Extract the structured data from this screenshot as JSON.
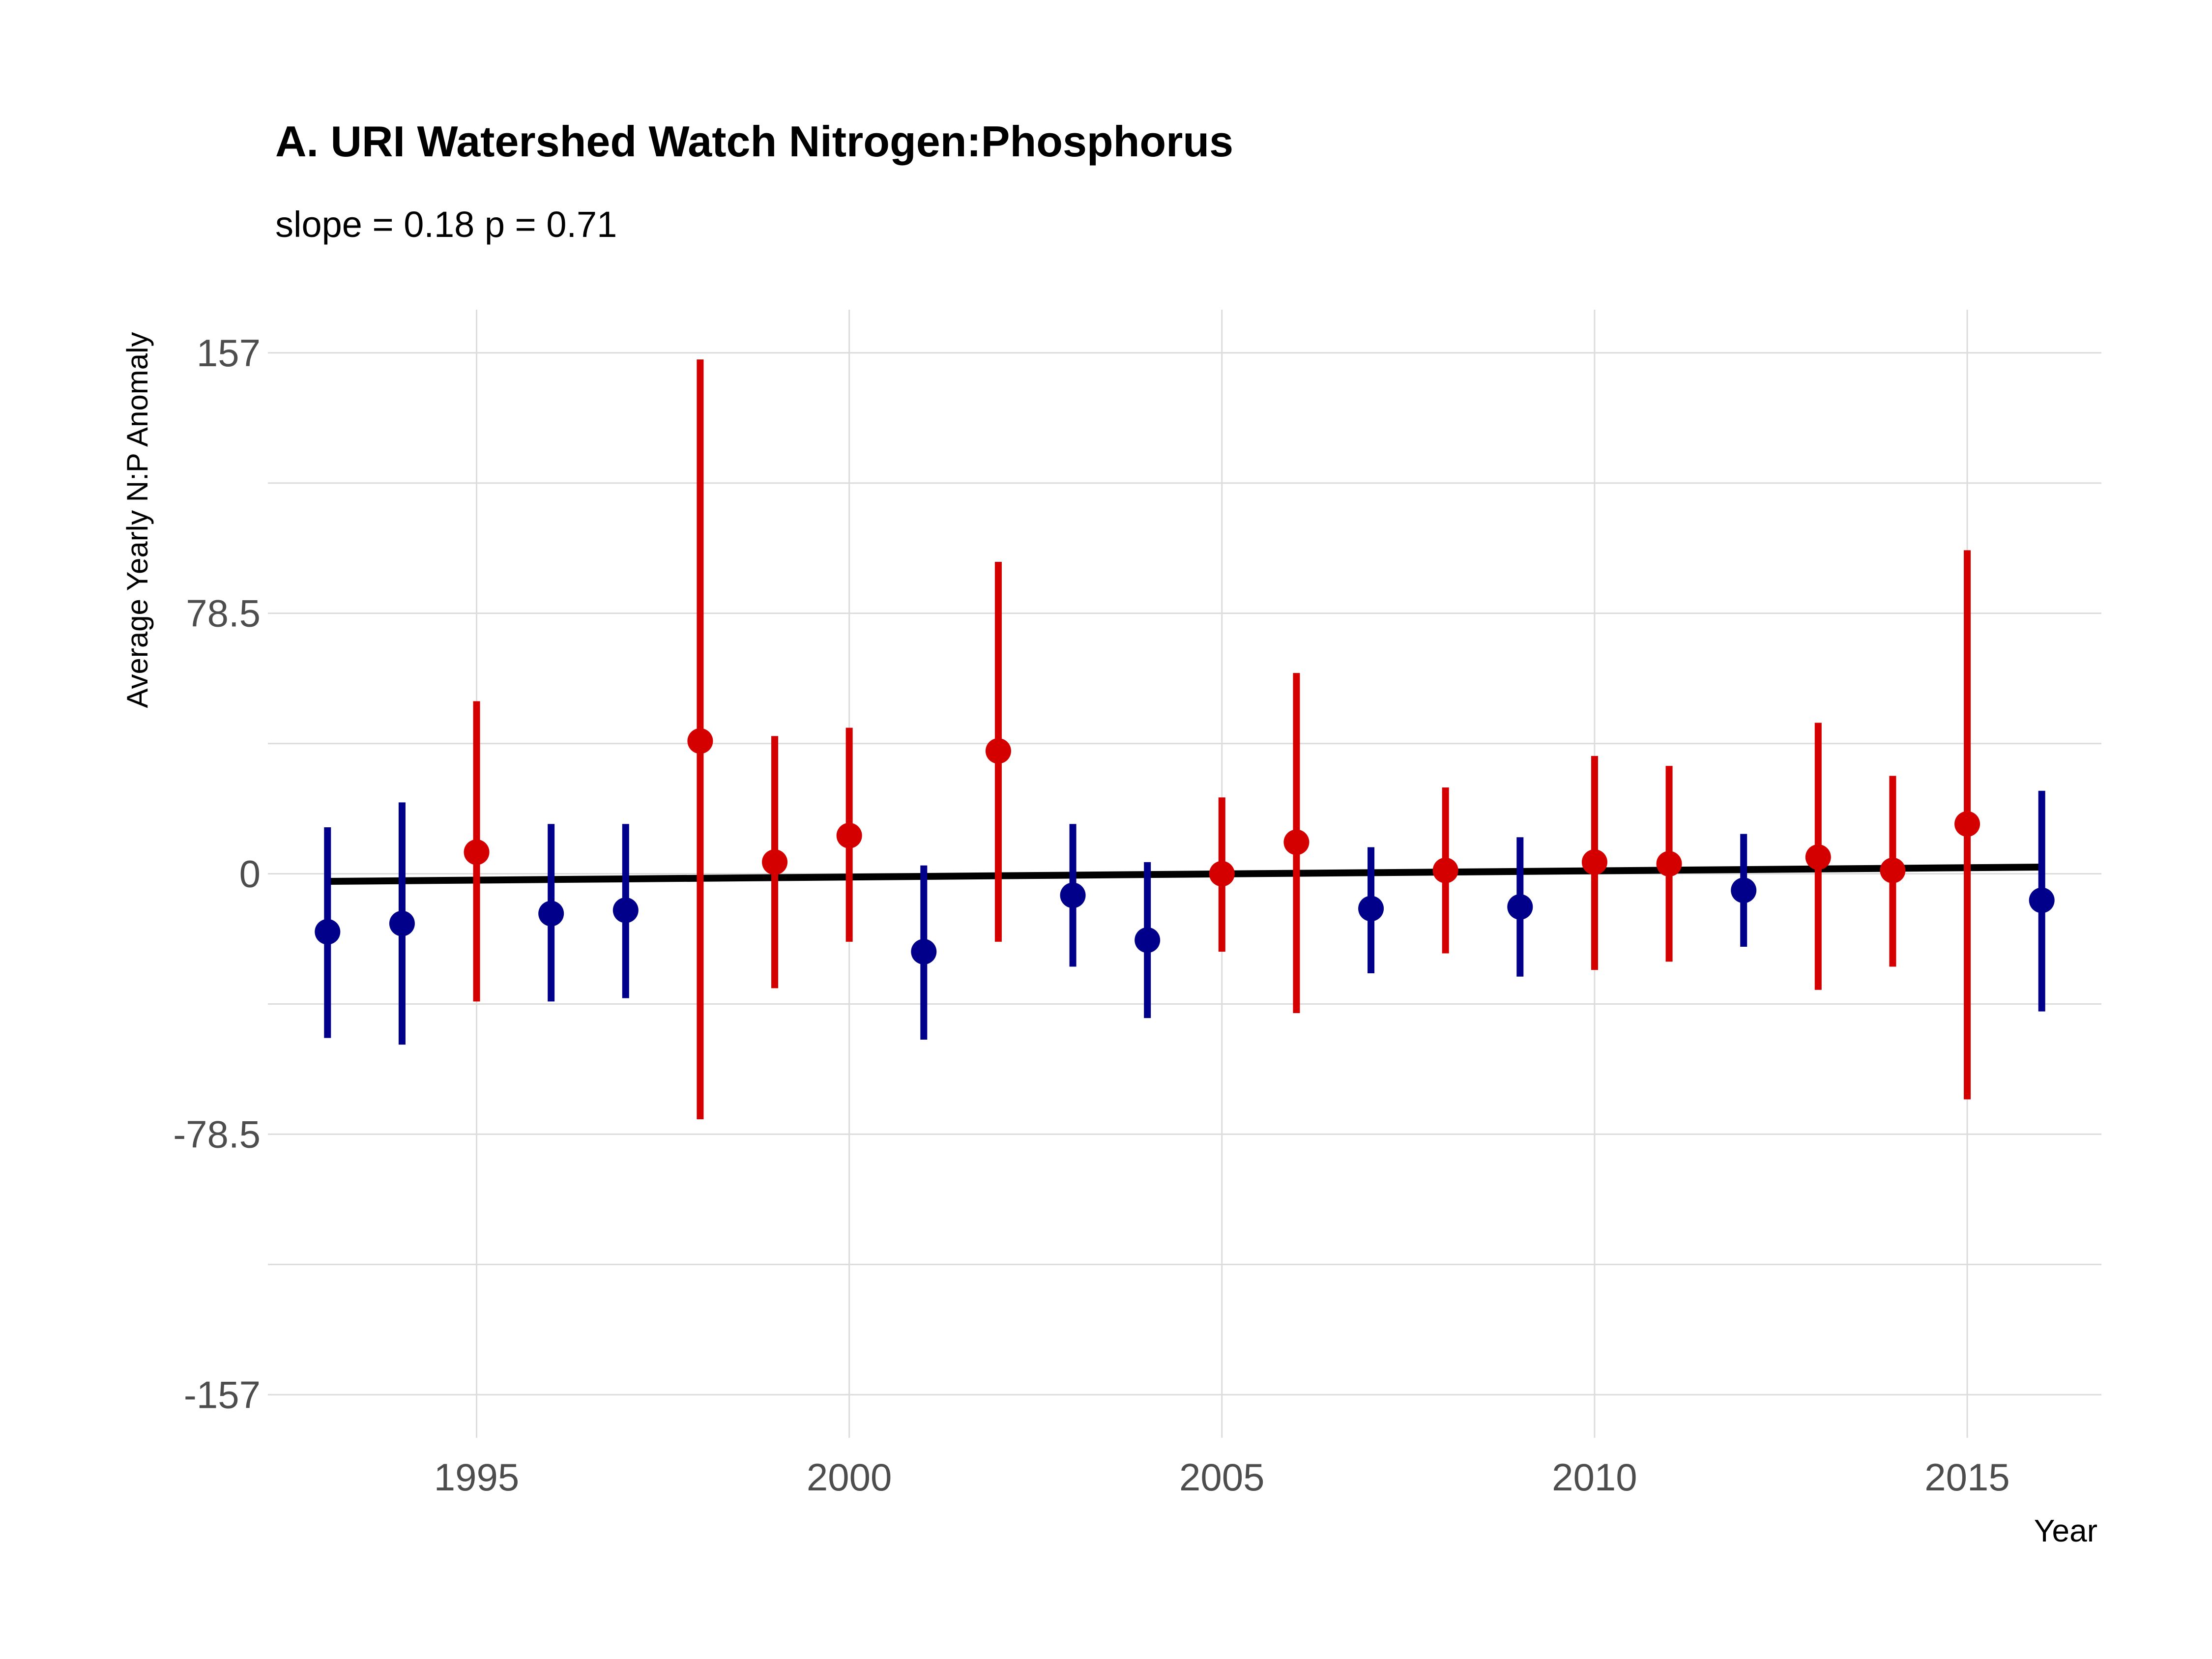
{
  "chart_data": {
    "type": "scatter",
    "title": "A. URI Watershed Watch Nitrogen:Phosphorus",
    "subtitle": "slope = 0.18 p = 0.71",
    "xlabel": "Year",
    "ylabel": "Average Yearly N:P Anomaly",
    "xlim": [
      1992.2,
      2016.8
    ],
    "ylim": [
      -170,
      170
    ],
    "x_ticks": [
      1995,
      2000,
      2005,
      2010,
      2015
    ],
    "y_ticks": [
      157,
      78.5,
      0,
      -78.5,
      -157
    ],
    "y_tick_labels": [
      "157",
      "78.5",
      "0",
      "-78.5",
      "-157"
    ],
    "grid": true,
    "colors": {
      "positive": "#d40000",
      "negative": "#00008b",
      "trend": "#000000"
    },
    "points": [
      {
        "year": 1993,
        "mean": -17.5,
        "lower": -49.5,
        "upper": 14
      },
      {
        "year": 1994,
        "mean": -15,
        "lower": -51.5,
        "upper": 21.5
      },
      {
        "year": 1995,
        "mean": 6.5,
        "lower": -38.5,
        "upper": 52
      },
      {
        "year": 1996,
        "mean": -12,
        "lower": -38.5,
        "upper": 15
      },
      {
        "year": 1997,
        "mean": -11,
        "lower": -37.5,
        "upper": 15
      },
      {
        "year": 1998,
        "mean": 40,
        "lower": -74,
        "upper": 155
      },
      {
        "year": 1999,
        "mean": 3.5,
        "lower": -34.5,
        "upper": 41.5
      },
      {
        "year": 2000,
        "mean": 11.5,
        "lower": -20.5,
        "upper": 44
      },
      {
        "year": 2001,
        "mean": -23.5,
        "lower": -50,
        "upper": 2.5
      },
      {
        "year": 2002,
        "mean": 37,
        "lower": -20.5,
        "upper": 94
      },
      {
        "year": 2003,
        "mean": -6.5,
        "lower": -28,
        "upper": 15
      },
      {
        "year": 2004,
        "mean": -20,
        "lower": -43.5,
        "upper": 3.5
      },
      {
        "year": 2005,
        "mean": 0,
        "lower": -23.5,
        "upper": 23
      },
      {
        "year": 2006,
        "mean": 9.5,
        "lower": -42,
        "upper": 60.5
      },
      {
        "year": 2007,
        "mean": -10.5,
        "lower": -30,
        "upper": 8
      },
      {
        "year": 2008,
        "mean": 1,
        "lower": -24,
        "upper": 26
      },
      {
        "year": 2009,
        "mean": -10,
        "lower": -31,
        "upper": 11
      },
      {
        "year": 2010,
        "mean": 3.5,
        "lower": -29,
        "upper": 35.5
      },
      {
        "year": 2011,
        "mean": 3,
        "lower": -26.5,
        "upper": 32.5
      },
      {
        "year": 2012,
        "mean": -5,
        "lower": -22,
        "upper": 12
      },
      {
        "year": 2013,
        "mean": 5,
        "lower": -35,
        "upper": 45.5
      },
      {
        "year": 2014,
        "mean": 1,
        "lower": -28,
        "upper": 29.5
      },
      {
        "year": 2015,
        "mean": 15,
        "lower": -68,
        "upper": 97.5
      },
      {
        "year": 2016,
        "mean": -8,
        "lower": -41.5,
        "upper": 25
      }
    ],
    "trend": {
      "start": [
        1993,
        -2.3
      ],
      "end": [
        2016,
        2.0
      ]
    }
  }
}
